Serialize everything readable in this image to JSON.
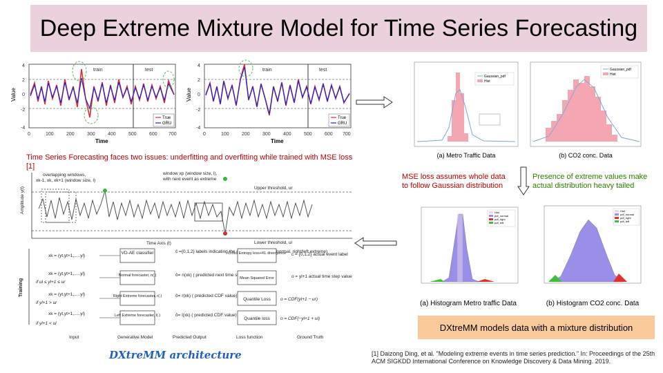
{
  "title": "Deep Extreme Mixture Model for Time Series Forecasting",
  "top_left": {
    "caption": "Time Series Forecasting faces two issues: underfitting and overfitting while trained with MSE loss [1]",
    "plots": [
      {
        "xlabel": "Time",
        "ylabel": "Value",
        "train_label": "train",
        "test_label": "test",
        "legend": [
          "True",
          "GRU"
        ],
        "xticks": [
          "0",
          "100",
          "200",
          "300",
          "400",
          "500",
          "600",
          "700"
        ],
        "yticks": [
          "4",
          "2",
          "0",
          "-2",
          "-4"
        ]
      },
      {
        "xlabel": "Time",
        "ylabel": "Value",
        "train_label": "train",
        "test_label": "test",
        "legend": [
          "True",
          "GRU"
        ],
        "xticks": [
          "0",
          "100",
          "200",
          "300",
          "400",
          "500",
          "600",
          "700"
        ],
        "yticks": [
          "4",
          "2",
          "0",
          "-2",
          "-4"
        ]
      }
    ]
  },
  "top_right": {
    "hist_a": {
      "caption": "(a) Metro Traffic Data",
      "legend": [
        "Gaussian_pdf",
        "Hist"
      ]
    },
    "hist_b": {
      "caption": "(b) CO2 conc. Data",
      "legend": [
        "Gaussian_pdf",
        "Hist"
      ]
    },
    "mse_note": "MSE loss assumes whole data to follow Gaussian distribution",
    "extreme_note": "Presence of extreme values make actual distribution heavy tailed"
  },
  "bottom_right": {
    "hist_a": {
      "caption": "(a) Histogram Metro traffic Data",
      "legend": [
        "Hist",
        "pdf_normal",
        "pdf_right",
        "pdf_left"
      ]
    },
    "hist_b": {
      "caption": "(b) Histogram CO2 conc. Data",
      "legend": [
        "Hist",
        "pdf_normal",
        "pdf_right",
        "pdf_left"
      ]
    },
    "mixture_note": "DXtreMM models data with a mixture distribution",
    "reference": "[1] Daizong Ding, et al. \"Modeling extreme events in time series prediction.\" In: Proceedings of the 25th ACM SIGKDD International Conference on Knowledge Discovery & Data Mining. 2019."
  },
  "architecture": {
    "caption": "DXtreMM architecture",
    "overlap_label": "overlapping windows,",
    "overlap_sub": "xk-1, xk, xk+1 (window size, l)",
    "window_label": "window xp (window size, l),",
    "window_sub": "with next event as extreme",
    "upper": "Upper threshold, ur",
    "lower": "Lower threshold, ul",
    "ylabel": "Amplitude y(t)",
    "time_axis": "Time Axis (t)",
    "training": "Training",
    "rows": [
      {
        "input": "xk = (yt,yt+1,.....yl)",
        "cond": "",
        "model": "VD-AE classifier",
        "output": "ĉ ={0,1,2} labels indicating the class of next event (normal, right/left extreme)",
        "loss": "Cross Entropy loss+KL divergence",
        "truth": "c = {0,1,2} actual event label"
      },
      {
        "input": "xk = (yt,yt+1,.....yl)",
        "cond": "if ul ≤ yl+1 ≤ ur",
        "model": "Normal forecaster, n(.)",
        "output": "ô= n(xk) ( predicted next time step value)",
        "loss": "Mean Squared Error",
        "truth": "o = yl+1 actual time step value"
      },
      {
        "input": "xk = (yt,yt+1,.....yl)",
        "cond": "if yl+1 > ur",
        "model": "Right Extreme forecaster, r(.)",
        "output": "ô= r(xk) ( predicted CDF value)",
        "loss": "Quantile Loss",
        "truth": "o = CDF(yl+1 − ur)"
      },
      {
        "input": "xk = (yt,yt+1,.....yl)",
        "cond": "if yl+1 < ul",
        "model": "Left Extreme forecaster, l(.)",
        "output": "ô= l(xk) ( predicted CDF value)",
        "loss": "Quantile loss",
        "truth": "o = CDF(−yl+1 + ul)"
      }
    ],
    "columns": [
      "Input",
      "Generative Model",
      "Predicted Output",
      "Loss function",
      "Ground Truth"
    ]
  }
}
